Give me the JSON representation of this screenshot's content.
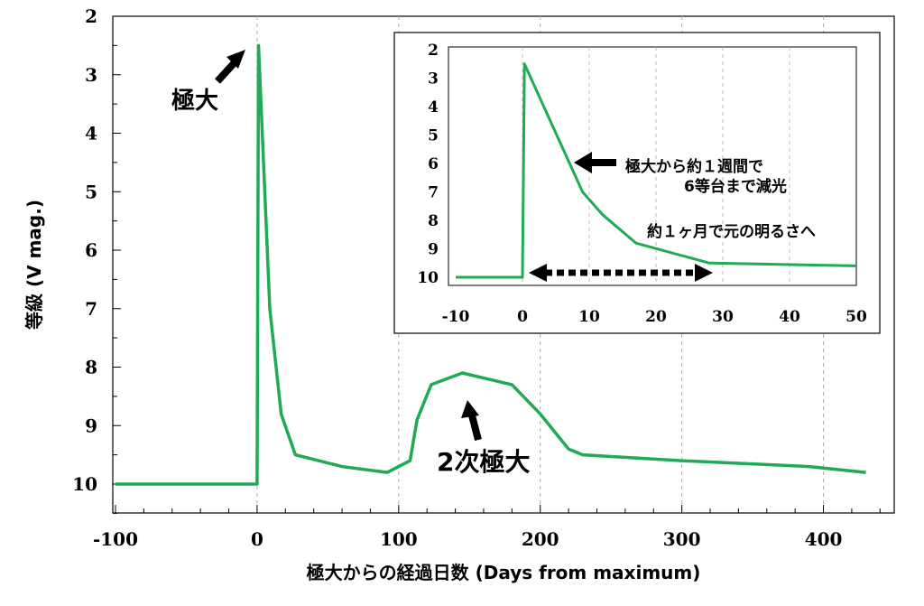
{
  "chart_data": [
    {
      "type": "line",
      "xlabel": "極大からの経過日数 (Days from maximum)",
      "ylabel": "等級 (V mag.)",
      "xlim": [
        -100,
        450
      ],
      "ylim_inverted": [
        2,
        10.5
      ],
      "x_ticks": [
        "-100",
        "0",
        "100",
        "200",
        "300",
        "400"
      ],
      "y_ticks": [
        "2",
        "3",
        "4",
        "5",
        "6",
        "7",
        "8",
        "9",
        "10"
      ],
      "series": [
        {
          "color": "#1faa55",
          "x": [
            -100,
            0,
            1,
            9,
            17,
            27,
            60,
            92,
            108,
            113,
            123,
            145,
            180,
            200,
            220,
            230,
            300,
            390,
            430
          ],
          "y": [
            10,
            10,
            2.5,
            7.0,
            8.8,
            9.5,
            9.7,
            9.8,
            9.6,
            8.9,
            8.3,
            8.1,
            8.3,
            8.8,
            9.4,
            9.5,
            9.6,
            9.7,
            9.8
          ]
        }
      ],
      "annotations": {
        "peak": "極大",
        "secondary_peak": "2次極大"
      }
    },
    {
      "type": "line",
      "inset": true,
      "xlim": [
        -10,
        50
      ],
      "ylim_inverted": [
        2,
        10
      ],
      "x_ticks": [
        "-10",
        "0",
        "10",
        "20",
        "30",
        "40",
        "50"
      ],
      "y_ticks": [
        "2",
        "3",
        "4",
        "5",
        "6",
        "7",
        "8",
        "9",
        "10"
      ],
      "series": [
        {
          "color": "#1faa55",
          "x": [
            -10,
            0,
            0.3,
            9,
            12,
            17,
            28,
            50
          ],
          "y": [
            10,
            10,
            2.5,
            7.0,
            7.8,
            8.8,
            9.5,
            9.6
          ]
        }
      ],
      "annotations": {
        "decline_line1": "極大から約１週間で",
        "decline_line2": "6等台まで減光",
        "return": "約１ヶ月で元の明るさへ"
      }
    }
  ]
}
